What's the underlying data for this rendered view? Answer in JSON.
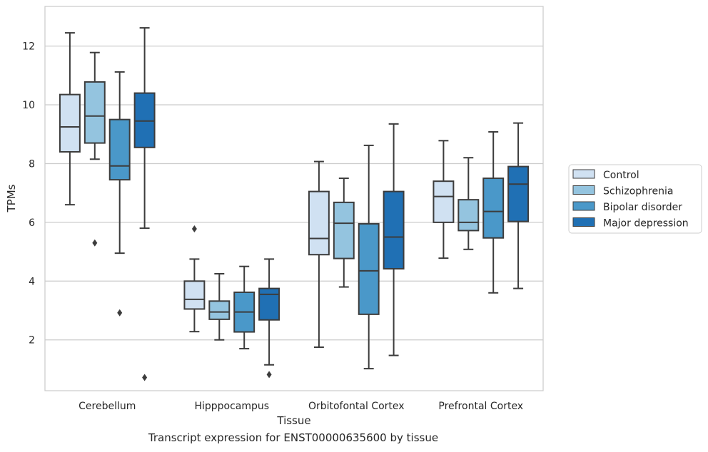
{
  "chart_data": {
    "type": "box",
    "xlabel": "Tissue",
    "ylabel": "TPMs",
    "caption": "Transcript expression for ENST00000635600 by tissue",
    "ylim": [
      0.27,
      13.35
    ],
    "yticks": [
      2,
      4,
      6,
      8,
      10,
      12
    ],
    "grid": "horizontal",
    "legend_placement": "right",
    "categories": [
      "Cerebellum",
      "Hipppocampus",
      "Orbitofontal Cortex",
      "Prefrontal Cortex"
    ],
    "series": [
      {
        "name": "Control",
        "color": "#d0e1f2",
        "boxes": [
          {
            "whislo": 6.6,
            "q1": 8.4,
            "med": 9.25,
            "q3": 10.35,
            "whishi": 12.45,
            "fliers": []
          },
          {
            "whislo": 2.28,
            "q1": 3.05,
            "med": 3.38,
            "q3": 4.0,
            "whishi": 4.75,
            "fliers": [
              5.78
            ]
          },
          {
            "whislo": 1.75,
            "q1": 4.9,
            "med": 5.45,
            "q3": 7.05,
            "whishi": 8.07,
            "fliers": []
          },
          {
            "whislo": 4.78,
            "q1": 6.0,
            "med": 6.88,
            "q3": 7.4,
            "whishi": 8.78,
            "fliers": []
          }
        ]
      },
      {
        "name": "Schizophrenia",
        "color": "#94c4df",
        "boxes": [
          {
            "whislo": 8.15,
            "q1": 8.7,
            "med": 9.62,
            "q3": 10.78,
            "whishi": 11.78,
            "fliers": [
              5.3
            ]
          },
          {
            "whislo": 2.0,
            "q1": 2.7,
            "med": 2.95,
            "q3": 3.32,
            "whishi": 4.25,
            "fliers": []
          },
          {
            "whislo": 3.8,
            "q1": 4.77,
            "med": 5.97,
            "q3": 6.68,
            "whishi": 7.5,
            "fliers": []
          },
          {
            "whislo": 5.08,
            "q1": 5.72,
            "med": 6.0,
            "q3": 6.77,
            "whishi": 8.2,
            "fliers": []
          }
        ]
      },
      {
        "name": "Bipolar disorder",
        "color": "#4a98c9",
        "boxes": [
          {
            "whislo": 4.95,
            "q1": 7.45,
            "med": 7.92,
            "q3": 9.5,
            "whishi": 11.12,
            "fliers": [
              2.92
            ]
          },
          {
            "whislo": 1.7,
            "q1": 2.27,
            "med": 2.95,
            "q3": 3.62,
            "whishi": 4.5,
            "fliers": []
          },
          {
            "whislo": 1.02,
            "q1": 2.87,
            "med": 4.35,
            "q3": 5.95,
            "whishi": 8.62,
            "fliers": []
          },
          {
            "whislo": 3.6,
            "q1": 5.47,
            "med": 6.37,
            "q3": 7.5,
            "whishi": 9.08,
            "fliers": []
          }
        ]
      },
      {
        "name": "Major depression",
        "color": "#2070b4",
        "boxes": [
          {
            "whislo": 5.8,
            "q1": 8.55,
            "med": 9.45,
            "q3": 10.4,
            "whishi": 12.62,
            "fliers": [
              0.72
            ]
          },
          {
            "whislo": 1.15,
            "q1": 2.68,
            "med": 3.55,
            "q3": 3.75,
            "whishi": 4.75,
            "fliers": [
              0.82
            ]
          },
          {
            "whislo": 1.47,
            "q1": 4.42,
            "med": 5.5,
            "q3": 7.05,
            "whishi": 9.35,
            "fliers": []
          },
          {
            "whislo": 3.75,
            "q1": 6.03,
            "med": 7.3,
            "q3": 7.9,
            "whishi": 9.38,
            "fliers": []
          }
        ]
      }
    ]
  }
}
